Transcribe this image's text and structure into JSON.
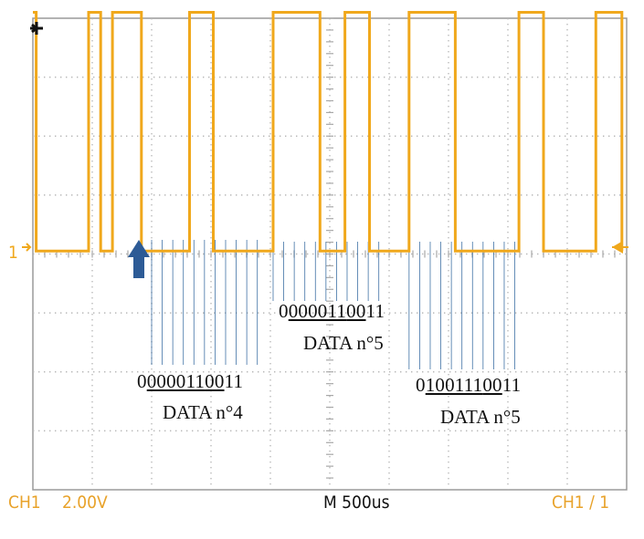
{
  "chart_data": {
    "type": "line",
    "title": "",
    "xlabel": "",
    "ylabel": "",
    "grid": true,
    "x_unit": "us",
    "y_unit": "V",
    "x_range": [
      0,
      5000
    ],
    "y_range": [
      -4,
      4
    ],
    "divisions": {
      "x": 10,
      "y": 8
    },
    "series": [
      {
        "color": "#f0a81c",
        "x": [
          0,
          28,
          28,
          469,
          469,
          571,
          571,
          670,
          670,
          914,
          914,
          1319,
          1319,
          1519,
          1519,
          2023,
          2023,
          2418,
          2418,
          2628,
          2628,
          2835,
          2835,
          3168,
          3168,
          3557,
          3557,
          4093,
          4093,
          4300,
          4300,
          4741,
          4741,
          4960,
          4960
        ],
        "y": [
          4.1,
          4.1,
          0.05,
          0.05,
          4.1,
          4.1,
          0.05,
          0.05,
          4.1,
          4.1,
          0.05,
          0.05,
          4.1,
          4.1,
          0.05,
          0.05,
          4.1,
          4.1,
          0.05,
          0.05,
          4.1,
          4.1,
          0.05,
          0.05,
          4.1,
          4.1,
          0.05,
          0.05,
          4.1,
          4.1,
          0.05,
          0.05,
          4.1,
          4.1,
          0.05
        ]
      }
    ],
    "bit_marker_groups": [
      {
        "x": [
          1000,
          1089,
          1178,
          1267,
          1356,
          1445,
          1534,
          1623,
          1712,
          1801,
          1890
        ]
      },
      {
        "x": [
          2023,
          2112,
          2201,
          2290,
          2379,
          2468,
          2557,
          2646,
          2735,
          2824,
          2913
        ]
      },
      {
        "x": [
          3168,
          3257,
          3346,
          3435,
          3524,
          3613,
          3702,
          3791,
          3880,
          3969,
          4058
        ]
      }
    ]
  },
  "annotations": [
    {
      "pre": "0",
      "u": "000011",
      "mid": "00",
      "post": "11",
      "label": "DATA n°4"
    },
    {
      "pre": "0",
      "u": "000011",
      "mid": "00",
      "post": "11",
      "label": "DATA n°5"
    },
    {
      "pre": "0",
      "u": "100111",
      "mid": "00",
      "post": "11",
      "label": "DATA n°5"
    }
  ],
  "status_bar": {
    "channel": "CH1",
    "volts_per_div": "2.00V",
    "timebase": "M 500us",
    "trigger": "CH1 ∕ 1"
  },
  "markers": {
    "channel_marker": "1"
  },
  "colors": {
    "trace": "#f0a81c",
    "bit_marker": "#1f5a96",
    "arrow": "#2d5b96",
    "grid_dots": "#b8b8b8",
    "status_text": "#e8a22a"
  }
}
